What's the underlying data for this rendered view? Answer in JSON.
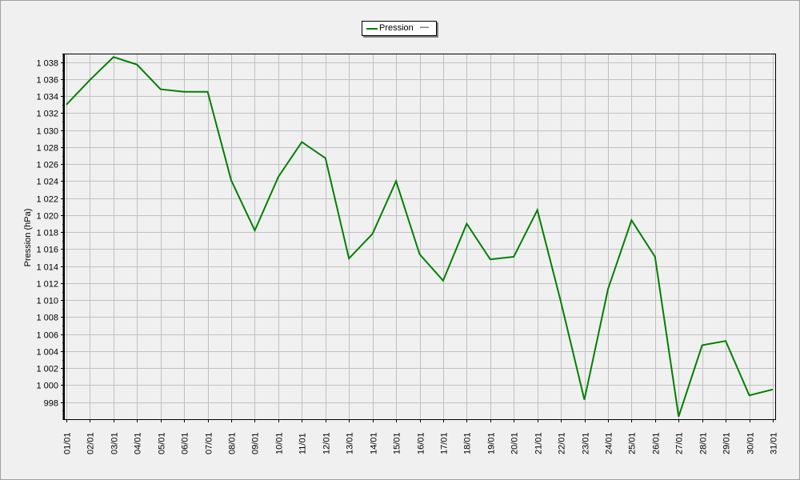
{
  "legend": {
    "label": "Pression",
    "dash": "—"
  },
  "chart_data": {
    "type": "line",
    "ylabel": "Pression (hPa)",
    "xlabel": "",
    "title": "",
    "grid": true,
    "legend_position": "top-center",
    "ylim": [
      996,
      1039
    ],
    "yticks": [
      998,
      1000,
      1002,
      1004,
      1006,
      1008,
      1010,
      1012,
      1014,
      1016,
      1018,
      1020,
      1022,
      1024,
      1026,
      1028,
      1030,
      1032,
      1034,
      1036,
      1038
    ],
    "ytick_labels": [
      "998",
      "1 000",
      "1 002",
      "1 004",
      "1 006",
      "1 008",
      "1 010",
      "1 012",
      "1 014",
      "1 016",
      "1 018",
      "1 020",
      "1 022",
      "1 024",
      "1 026",
      "1 028",
      "1 030",
      "1 032",
      "1 034",
      "1 036",
      "1 038"
    ],
    "categories": [
      "01/01",
      "02/01",
      "03/01",
      "04/01",
      "05/01",
      "06/01",
      "07/01",
      "08/01",
      "09/01",
      "10/01",
      "11/01",
      "12/01",
      "13/01",
      "14/01",
      "15/01",
      "16/01",
      "17/01",
      "18/01",
      "19/01",
      "20/01",
      "21/01",
      "22/01",
      "23/01",
      "24/01",
      "25/01",
      "26/01",
      "27/01",
      "28/01",
      "29/01",
      "30/01",
      "31/01"
    ],
    "series": [
      {
        "name": "Pression",
        "color": "#008000",
        "values": [
          1033.0,
          1035.9,
          1038.6,
          1037.7,
          1034.8,
          1034.5,
          1034.5,
          1024.1,
          1018.2,
          1024.5,
          1028.6,
          1026.7,
          1014.9,
          1017.8,
          1024.0,
          1015.4,
          1012.3,
          1019.0,
          1014.8,
          1015.1,
          1020.6,
          1009.8,
          998.3,
          1011.3,
          1019.4,
          1015.1,
          996.3,
          1004.7,
          1005.2,
          998.8,
          999.5
        ]
      }
    ]
  }
}
